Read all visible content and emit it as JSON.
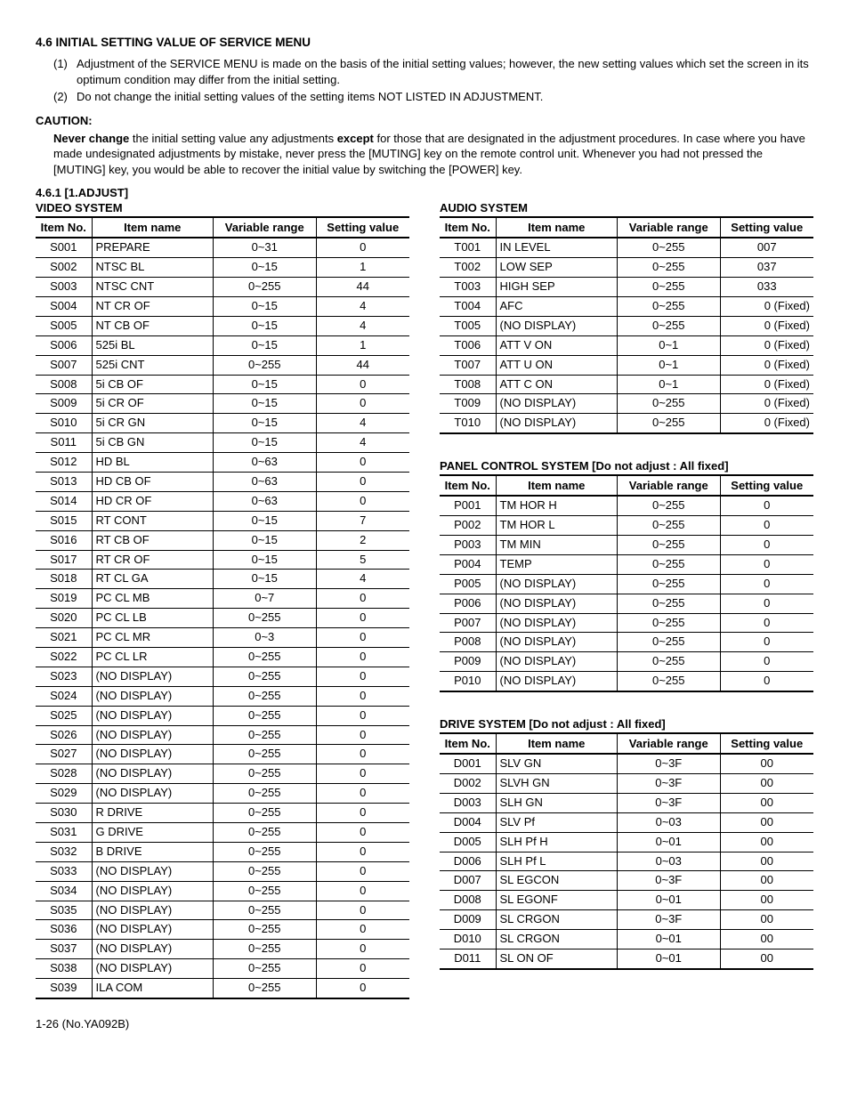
{
  "heading": "4.6  INITIAL SETTING VALUE OF SERVICE MENU",
  "notes": [
    {
      "num": "(1)",
      "text": "Adjustment of the SERVICE MENU is made on the basis of the initial setting values; however, the new setting values which set the screen in its optimum condition may differ from the initial setting."
    },
    {
      "num": "(2)",
      "text": "Do not change the initial setting values of the setting items NOT LISTED IN ADJUSTMENT."
    }
  ],
  "caution_title": "CAUTION:",
  "caution_bold1": "Never change",
  "caution_mid": " the initial setting value any adjustments ",
  "caution_bold2": "except",
  "caution_rest": " for those that are designated in the adjustment procedures. In case where you have made undesignated adjustments by mistake, never press the [MUTING] key on the remote control unit. Whenever you had not pressed the [MUTING] key, you would be able to recover the initial value by switching the [POWER] key.",
  "subsection": "4.6.1    [1.ADJUST]",
  "headers": {
    "no": "Item No.",
    "name": "Item name",
    "range": "Variable range",
    "val": "Setting value"
  },
  "video": {
    "title": "VIDEO SYSTEM",
    "rows": [
      [
        "S001",
        "PREPARE",
        "0~31",
        "0"
      ],
      [
        "S002",
        "NTSC BL",
        "0~15",
        "1"
      ],
      [
        "S003",
        "NTSC CNT",
        "0~255",
        "44"
      ],
      [
        "S004",
        "NT CR OF",
        "0~15",
        "4"
      ],
      [
        "S005",
        "NT CB OF",
        "0~15",
        "4"
      ],
      [
        "S006",
        "525i BL",
        "0~15",
        "1"
      ],
      [
        "S007",
        "525i CNT",
        "0~255",
        "44"
      ],
      [
        "S008",
        "5i CB OF",
        "0~15",
        "0"
      ],
      [
        "S009",
        "5i CR OF",
        "0~15",
        "0"
      ],
      [
        "S010",
        "5i CR GN",
        "0~15",
        "4"
      ],
      [
        "S011",
        "5i CB GN",
        "0~15",
        "4"
      ],
      [
        "S012",
        "HD BL",
        "0~63",
        "0"
      ],
      [
        "S013",
        "HD CB OF",
        "0~63",
        "0"
      ],
      [
        "S014",
        "HD CR OF",
        "0~63",
        "0"
      ],
      [
        "S015",
        "RT CONT",
        "0~15",
        "7"
      ],
      [
        "S016",
        "RT CB OF",
        "0~15",
        "2"
      ],
      [
        "S017",
        "RT CR OF",
        "0~15",
        "5"
      ],
      [
        "S018",
        "RT CL GA",
        "0~15",
        "4"
      ],
      [
        "S019",
        "PC CL MB",
        "0~7",
        "0"
      ],
      [
        "S020",
        "PC CL LB",
        "0~255",
        "0"
      ],
      [
        "S021",
        "PC CL MR",
        "0~3",
        "0"
      ],
      [
        "S022",
        "PC CL LR",
        "0~255",
        "0"
      ],
      [
        "S023",
        "(NO DISPLAY)",
        "0~255",
        "0"
      ],
      [
        "S024",
        "(NO DISPLAY)",
        "0~255",
        "0"
      ],
      [
        "S025",
        "(NO DISPLAY)",
        "0~255",
        "0"
      ],
      [
        "S026",
        "(NO DISPLAY)",
        "0~255",
        "0"
      ],
      [
        "S027",
        "(NO DISPLAY)",
        "0~255",
        "0"
      ],
      [
        "S028",
        "(NO DISPLAY)",
        "0~255",
        "0"
      ],
      [
        "S029",
        "(NO DISPLAY)",
        "0~255",
        "0"
      ],
      [
        "S030",
        "R DRIVE",
        "0~255",
        "0"
      ],
      [
        "S031",
        "G DRIVE",
        "0~255",
        "0"
      ],
      [
        "S032",
        "B DRIVE",
        "0~255",
        "0"
      ],
      [
        "S033",
        "(NO DISPLAY)",
        "0~255",
        "0"
      ],
      [
        "S034",
        "(NO DISPLAY)",
        "0~255",
        "0"
      ],
      [
        "S035",
        "(NO DISPLAY)",
        "0~255",
        "0"
      ],
      [
        "S036",
        "(NO DISPLAY)",
        "0~255",
        "0"
      ],
      [
        "S037",
        "(NO DISPLAY)",
        "0~255",
        "0"
      ],
      [
        "S038",
        "(NO DISPLAY)",
        "0~255",
        "0"
      ],
      [
        "S039",
        "ILA COM",
        "0~255",
        "0"
      ]
    ]
  },
  "audio": {
    "title": "AUDIO SYSTEM",
    "rows": [
      [
        "T001",
        "IN LEVEL",
        "0~255",
        "007",
        "c"
      ],
      [
        "T002",
        "LOW SEP",
        "0~255",
        "037",
        "c"
      ],
      [
        "T003",
        "HIGH SEP",
        "0~255",
        "033",
        "c"
      ],
      [
        "T004",
        "AFC",
        "0~255",
        "0 (Fixed)",
        "r"
      ],
      [
        "T005",
        "(NO DISPLAY)",
        "0~255",
        "0 (Fixed)",
        "r"
      ],
      [
        "T006",
        "ATT V ON",
        "0~1",
        "0 (Fixed)",
        "r"
      ],
      [
        "T007",
        "ATT U ON",
        "0~1",
        "0 (Fixed)",
        "r"
      ],
      [
        "T008",
        "ATT C ON",
        "0~1",
        "0 (Fixed)",
        "r"
      ],
      [
        "T009",
        "(NO DISPLAY)",
        "0~255",
        "0 (Fixed)",
        "r"
      ],
      [
        "T010",
        "(NO DISPLAY)",
        "0~255",
        "0 (Fixed)",
        "r"
      ]
    ]
  },
  "panel": {
    "title": "PANEL CONTROL SYSTEM [Do not adjust : All fixed]",
    "rows": [
      [
        "P001",
        "TM HOR H",
        "0~255",
        "0"
      ],
      [
        "P002",
        "TM HOR L",
        "0~255",
        "0"
      ],
      [
        "P003",
        "TM MIN",
        "0~255",
        "0"
      ],
      [
        "P004",
        "TEMP",
        "0~255",
        "0"
      ],
      [
        "P005",
        "(NO DISPLAY)",
        "0~255",
        "0"
      ],
      [
        "P006",
        "(NO DISPLAY)",
        "0~255",
        "0"
      ],
      [
        "P007",
        "(NO DISPLAY)",
        "0~255",
        "0"
      ],
      [
        "P008",
        "(NO DISPLAY)",
        "0~255",
        "0"
      ],
      [
        "P009",
        "(NO DISPLAY)",
        "0~255",
        "0"
      ],
      [
        "P010",
        "(NO DISPLAY)",
        "0~255",
        "0"
      ]
    ]
  },
  "drive": {
    "title": "DRIVE SYSTEM [Do not adjust : All fixed]",
    "rows": [
      [
        "D001",
        "SLV GN",
        "0~3F",
        "00"
      ],
      [
        "D002",
        "SLVH GN",
        "0~3F",
        "00"
      ],
      [
        "D003",
        "SLH GN",
        "0~3F",
        "00"
      ],
      [
        "D004",
        "SLV Pf",
        "0~03",
        "00"
      ],
      [
        "D005",
        "SLH Pf H",
        "0~01",
        "00"
      ],
      [
        "D006",
        "SLH Pf L",
        "0~03",
        "00"
      ],
      [
        "D007",
        "SL EGCON",
        "0~3F",
        "00"
      ],
      [
        "D008",
        "SL EGONF",
        "0~01",
        "00"
      ],
      [
        "D009",
        "SL CRGON",
        "0~3F",
        "00"
      ],
      [
        "D010",
        "SL CRGON",
        "0~01",
        "00"
      ],
      [
        "D011",
        "SL ON OF",
        "0~01",
        "00"
      ]
    ]
  },
  "footer": "1-26 (No.YA092B)"
}
